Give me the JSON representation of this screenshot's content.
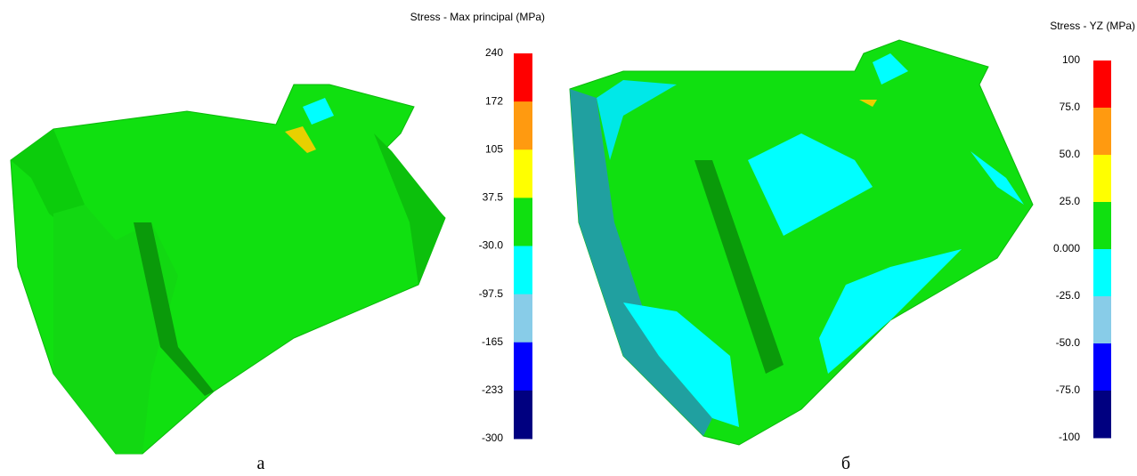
{
  "panels": [
    {
      "legend": {
        "title": "Stress - Max principal (MPa)",
        "labels": [
          "240",
          "172",
          "105",
          "37.5",
          "-30.0",
          "-97.5",
          "-165",
          "-233",
          "-300"
        ],
        "colors": [
          "#ff0000",
          "#ff9a10",
          "#ffff00",
          "#10e010",
          "#00ffff",
          "#88cce8",
          "#0000ff",
          "#000080"
        ]
      },
      "caption": "а"
    },
    {
      "legend": {
        "title": "Stress - YZ (MPa)",
        "labels": [
          "100",
          "75.0",
          "50.0",
          "25.0",
          "0.000",
          "-25.0",
          "-50.0",
          "-75.0",
          "-100"
        ],
        "colors": [
          "#ff0000",
          "#ff9a10",
          "#ffff00",
          "#10e010",
          "#00ffff",
          "#88cce8",
          "#0000ff",
          "#000080"
        ]
      },
      "caption": "б"
    }
  ]
}
